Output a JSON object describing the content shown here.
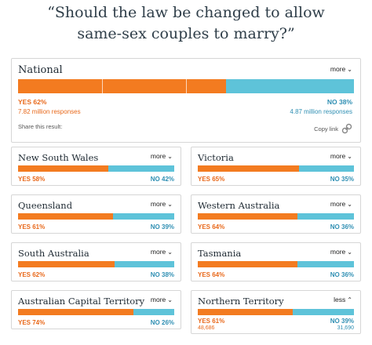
{
  "question": {
    "line1": "“Should the law be changed to allow",
    "line2": "same-sex couples to marry?”"
  },
  "colors": {
    "yes": "#f37b20",
    "no": "#5ec3d9",
    "yes_text": "#e8681a",
    "no_text": "#2f8fb3"
  },
  "national": {
    "title": "National",
    "more_label": "more",
    "yes_label": "YES 62%",
    "no_label": "NO 38%",
    "yes_responses": "7.82 million responses",
    "no_responses": "4.87 million responses",
    "share_label": "Share this result:",
    "copy_label": "Copy link",
    "icons": {
      "expand": "chevron-down-icon",
      "link": "link-icon"
    }
  },
  "chart_data": {
    "type": "bar",
    "title": "“Should the law be changed to allow same-sex couples to marry?”",
    "categories": [
      "National",
      "New South Wales",
      "Victoria",
      "Queensland",
      "Western Australia",
      "South Australia",
      "Tasmania",
      "Australian Capital Territory",
      "Northern Territory"
    ],
    "series": [
      {
        "name": "YES",
        "values": [
          62,
          58,
          65,
          61,
          64,
          62,
          64,
          74,
          61
        ]
      },
      {
        "name": "NO",
        "values": [
          38,
          42,
          35,
          39,
          36,
          38,
          36,
          26,
          39
        ]
      }
    ],
    "ylim": [
      0,
      100
    ],
    "grid": false,
    "legend": "none"
  },
  "states": [
    {
      "name": "New South Wales",
      "more_label": "more",
      "yes_label": "YES 58%",
      "no_label": "NO 42%",
      "yes_pct": 58
    },
    {
      "name": "Victoria",
      "more_label": "more",
      "yes_label": "YES 65%",
      "no_label": "NO 35%",
      "yes_pct": 65
    },
    {
      "name": "Queensland",
      "more_label": "more",
      "yes_label": "YES 61%",
      "no_label": "NO 39%",
      "yes_pct": 61
    },
    {
      "name": "Western Australia",
      "more_label": "more",
      "yes_label": "YES 64%",
      "no_label": "NO 36%",
      "yes_pct": 64
    },
    {
      "name": "South Australia",
      "more_label": "more",
      "yes_label": "YES 62%",
      "no_label": "NO 38%",
      "yes_pct": 62
    },
    {
      "name": "Tasmania",
      "more_label": "more",
      "yes_label": "YES 64%",
      "no_label": "NO 36%",
      "yes_pct": 64
    },
    {
      "name": "Australian Capital Territory",
      "more_label": "more",
      "yes_label": "YES 74%",
      "no_label": "NO 26%",
      "yes_pct": 74
    },
    {
      "name": "Northern Territory",
      "more_label": "less",
      "yes_label": "YES 61%",
      "no_label": "NO 39%",
      "yes_pct": 61,
      "yes_count": "48,686",
      "no_count": "31,690"
    }
  ]
}
